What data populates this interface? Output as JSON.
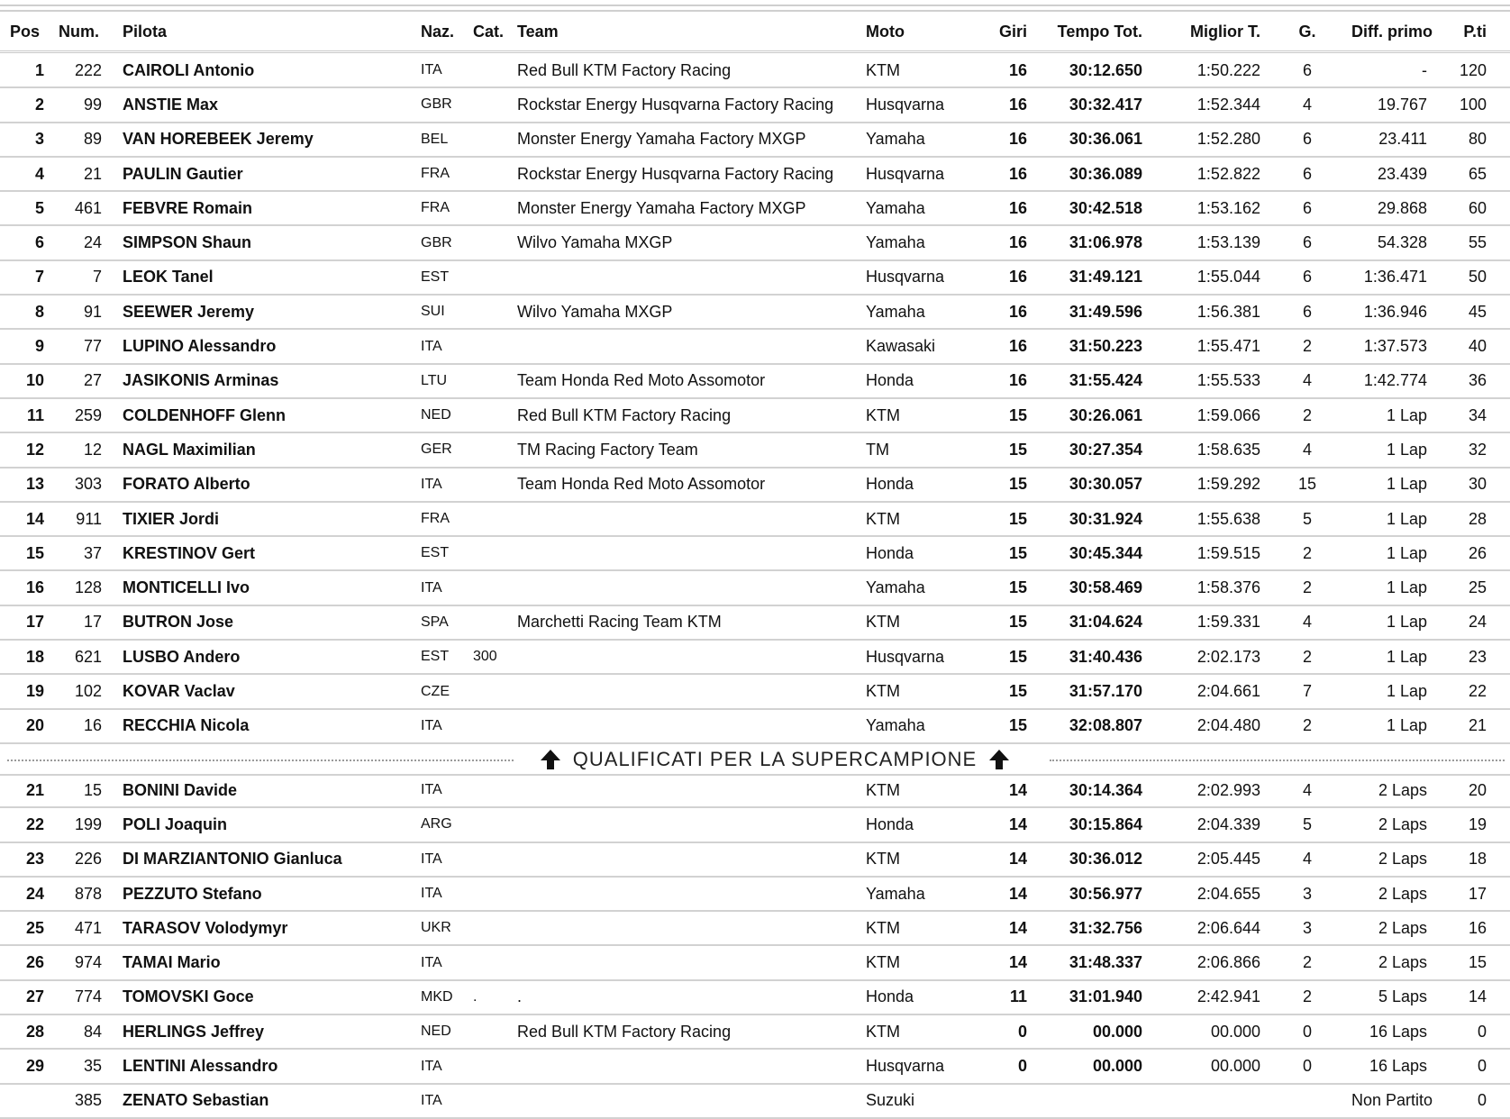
{
  "headers": {
    "pos": "Pos",
    "num": "Num.",
    "pilota": "Pilota",
    "naz": "Naz.",
    "cat": "Cat.",
    "team": "Team",
    "moto": "Moto",
    "giri": "Giri",
    "tempo": "Tempo Tot.",
    "miglior": "Miglior T.",
    "g": "G.",
    "diff": "Diff. primo",
    "pti": "P.ti"
  },
  "separator": {
    "label": "QUALIFICATI PER LA SUPERCAMPIONE",
    "icon": "arrow-up-icon"
  },
  "rows_qualified": [
    {
      "pos": "1",
      "num": "222",
      "pilota": "CAIROLI Antonio",
      "naz": "ITA",
      "cat": "",
      "team": "Red Bull KTM Factory Racing",
      "moto": "KTM",
      "giri": "16",
      "tempo": "30:12.650",
      "miglior": "1:50.222",
      "g": "6",
      "diff": "-",
      "pti": "120"
    },
    {
      "pos": "2",
      "num": "99",
      "pilota": "ANSTIE Max",
      "naz": "GBR",
      "cat": "",
      "team": "Rockstar Energy Husqvarna Factory Racing",
      "moto": "Husqvarna",
      "giri": "16",
      "tempo": "30:32.417",
      "miglior": "1:52.344",
      "g": "4",
      "diff": "19.767",
      "pti": "100"
    },
    {
      "pos": "3",
      "num": "89",
      "pilota": "VAN HOREBEEK Jeremy",
      "naz": "BEL",
      "cat": "",
      "team": "Monster Energy Yamaha Factory MXGP",
      "moto": "Yamaha",
      "giri": "16",
      "tempo": "30:36.061",
      "miglior": "1:52.280",
      "g": "6",
      "diff": "23.411",
      "pti": "80"
    },
    {
      "pos": "4",
      "num": "21",
      "pilota": "PAULIN Gautier",
      "naz": "FRA",
      "cat": "",
      "team": "Rockstar Energy Husqvarna Factory Racing",
      "moto": "Husqvarna",
      "giri": "16",
      "tempo": "30:36.089",
      "miglior": "1:52.822",
      "g": "6",
      "diff": "23.439",
      "pti": "65"
    },
    {
      "pos": "5",
      "num": "461",
      "pilota": "FEBVRE Romain",
      "naz": "FRA",
      "cat": "",
      "team": "Monster Energy Yamaha Factory MXGP",
      "moto": "Yamaha",
      "giri": "16",
      "tempo": "30:42.518",
      "miglior": "1:53.162",
      "g": "6",
      "diff": "29.868",
      "pti": "60"
    },
    {
      "pos": "6",
      "num": "24",
      "pilota": "SIMPSON Shaun",
      "naz": "GBR",
      "cat": "",
      "team": "Wilvo Yamaha MXGP",
      "moto": "Yamaha",
      "giri": "16",
      "tempo": "31:06.978",
      "miglior": "1:53.139",
      "g": "6",
      "diff": "54.328",
      "pti": "55"
    },
    {
      "pos": "7",
      "num": "7",
      "pilota": "LEOK Tanel",
      "naz": "EST",
      "cat": "",
      "team": "",
      "moto": "Husqvarna",
      "giri": "16",
      "tempo": "31:49.121",
      "miglior": "1:55.044",
      "g": "6",
      "diff": "1:36.471",
      "pti": "50"
    },
    {
      "pos": "8",
      "num": "91",
      "pilota": "SEEWER Jeremy",
      "naz": "SUI",
      "cat": "",
      "team": "Wilvo Yamaha MXGP",
      "moto": "Yamaha",
      "giri": "16",
      "tempo": "31:49.596",
      "miglior": "1:56.381",
      "g": "6",
      "diff": "1:36.946",
      "pti": "45"
    },
    {
      "pos": "9",
      "num": "77",
      "pilota": "LUPINO Alessandro",
      "naz": "ITA",
      "cat": "",
      "team": "",
      "moto": "Kawasaki",
      "giri": "16",
      "tempo": "31:50.223",
      "miglior": "1:55.471",
      "g": "2",
      "diff": "1:37.573",
      "pti": "40"
    },
    {
      "pos": "10",
      "num": "27",
      "pilota": "JASIKONIS Arminas",
      "naz": "LTU",
      "cat": "",
      "team": "Team Honda Red Moto Assomotor",
      "moto": "Honda",
      "giri": "16",
      "tempo": "31:55.424",
      "miglior": "1:55.533",
      "g": "4",
      "diff": "1:42.774",
      "pti": "36"
    },
    {
      "pos": "11",
      "num": "259",
      "pilota": "COLDENHOFF Glenn",
      "naz": "NED",
      "cat": "",
      "team": "Red Bull KTM Factory Racing",
      "moto": "KTM",
      "giri": "15",
      "tempo": "30:26.061",
      "miglior": "1:59.066",
      "g": "2",
      "diff": "1 Lap",
      "pti": "34"
    },
    {
      "pos": "12",
      "num": "12",
      "pilota": "NAGL Maximilian",
      "naz": "GER",
      "cat": "",
      "team": "TM Racing Factory Team",
      "moto": "TM",
      "giri": "15",
      "tempo": "30:27.354",
      "miglior": "1:58.635",
      "g": "4",
      "diff": "1 Lap",
      "pti": "32"
    },
    {
      "pos": "13",
      "num": "303",
      "pilota": "FORATO Alberto",
      "naz": "ITA",
      "cat": "",
      "team": "Team Honda Red Moto Assomotor",
      "moto": "Honda",
      "giri": "15",
      "tempo": "30:30.057",
      "miglior": "1:59.292",
      "g": "15",
      "diff": "1 Lap",
      "pti": "30"
    },
    {
      "pos": "14",
      "num": "911",
      "pilota": "TIXIER Jordi",
      "naz": "FRA",
      "cat": "",
      "team": "",
      "moto": "KTM",
      "giri": "15",
      "tempo": "30:31.924",
      "miglior": "1:55.638",
      "g": "5",
      "diff": "1 Lap",
      "pti": "28"
    },
    {
      "pos": "15",
      "num": "37",
      "pilota": "KRESTINOV Gert",
      "naz": "EST",
      "cat": "",
      "team": "",
      "moto": "Honda",
      "giri": "15",
      "tempo": "30:45.344",
      "miglior": "1:59.515",
      "g": "2",
      "diff": "1 Lap",
      "pti": "26"
    },
    {
      "pos": "16",
      "num": "128",
      "pilota": "MONTICELLI Ivo",
      "naz": "ITA",
      "cat": "",
      "team": "",
      "moto": "Yamaha",
      "giri": "15",
      "tempo": "30:58.469",
      "miglior": "1:58.376",
      "g": "2",
      "diff": "1 Lap",
      "pti": "25"
    },
    {
      "pos": "17",
      "num": "17",
      "pilota": "BUTRON Jose",
      "naz": "SPA",
      "cat": "",
      "team": "Marchetti Racing Team KTM",
      "moto": "KTM",
      "giri": "15",
      "tempo": "31:04.624",
      "miglior": "1:59.331",
      "g": "4",
      "diff": "1 Lap",
      "pti": "24"
    },
    {
      "pos": "18",
      "num": "621",
      "pilota": "LUSBO Andero",
      "naz": "EST",
      "cat": "300",
      "team": "",
      "moto": "Husqvarna",
      "giri": "15",
      "tempo": "31:40.436",
      "miglior": "2:02.173",
      "g": "2",
      "diff": "1 Lap",
      "pti": "23"
    },
    {
      "pos": "19",
      "num": "102",
      "pilota": "KOVAR Vaclav",
      "naz": "CZE",
      "cat": "",
      "team": "",
      "moto": "KTM",
      "giri": "15",
      "tempo": "31:57.170",
      "miglior": "2:04.661",
      "g": "7",
      "diff": "1 Lap",
      "pti": "22"
    },
    {
      "pos": "20",
      "num": "16",
      "pilota": "RECCHIA Nicola",
      "naz": "ITA",
      "cat": "",
      "team": "",
      "moto": "Yamaha",
      "giri": "15",
      "tempo": "32:08.807",
      "miglior": "2:04.480",
      "g": "2",
      "diff": "1 Lap",
      "pti": "21"
    }
  ],
  "rows_other": [
    {
      "pos": "21",
      "num": "15",
      "pilota": "BONINI Davide",
      "naz": "ITA",
      "cat": "",
      "team": "",
      "moto": "KTM",
      "giri": "14",
      "tempo": "30:14.364",
      "miglior": "2:02.993",
      "g": "4",
      "diff": "2 Laps",
      "pti": "20"
    },
    {
      "pos": "22",
      "num": "199",
      "pilota": "POLI Joaquin",
      "naz": "ARG",
      "cat": "",
      "team": "",
      "moto": "Honda",
      "giri": "14",
      "tempo": "30:15.864",
      "miglior": "2:04.339",
      "g": "5",
      "diff": "2 Laps",
      "pti": "19"
    },
    {
      "pos": "23",
      "num": "226",
      "pilota": "DI MARZIANTONIO Gianluca",
      "naz": "ITA",
      "cat": "",
      "team": "",
      "moto": "KTM",
      "giri": "14",
      "tempo": "30:36.012",
      "miglior": "2:05.445",
      "g": "4",
      "diff": "2 Laps",
      "pti": "18"
    },
    {
      "pos": "24",
      "num": "878",
      "pilota": "PEZZUTO Stefano",
      "naz": "ITA",
      "cat": "",
      "team": "",
      "moto": "Yamaha",
      "giri": "14",
      "tempo": "30:56.977",
      "miglior": "2:04.655",
      "g": "3",
      "diff": "2 Laps",
      "pti": "17"
    },
    {
      "pos": "25",
      "num": "471",
      "pilota": "TARASOV Volodymyr",
      "naz": "UKR",
      "cat": "",
      "team": "",
      "moto": "KTM",
      "giri": "14",
      "tempo": "31:32.756",
      "miglior": "2:06.644",
      "g": "3",
      "diff": "2 Laps",
      "pti": "16"
    },
    {
      "pos": "26",
      "num": "974",
      "pilota": "TAMAI Mario",
      "naz": "ITA",
      "cat": "",
      "team": "",
      "moto": "KTM",
      "giri": "14",
      "tempo": "31:48.337",
      "miglior": "2:06.866",
      "g": "2",
      "diff": "2 Laps",
      "pti": "15"
    },
    {
      "pos": "27",
      "num": "774",
      "pilota": "TOMOVSKI Goce",
      "naz": "MKD",
      "cat": ".",
      "team": ".",
      "moto": "Honda",
      "giri": "11",
      "tempo": "31:01.940",
      "miglior": "2:42.941",
      "g": "2",
      "diff": "5 Laps",
      "pti": "14"
    },
    {
      "pos": "28",
      "num": "84",
      "pilota": "HERLINGS Jeffrey",
      "naz": "NED",
      "cat": "",
      "team": "Red Bull KTM Factory Racing",
      "moto": "KTM",
      "giri": "0",
      "tempo": "00.000",
      "miglior": "00.000",
      "g": "0",
      "diff": "16 Laps",
      "pti": "0"
    },
    {
      "pos": "29",
      "num": "35",
      "pilota": "LENTINI Alessandro",
      "naz": "ITA",
      "cat": "",
      "team": "",
      "moto": "Husqvarna",
      "giri": "0",
      "tempo": "00.000",
      "miglior": "00.000",
      "g": "0",
      "diff": "16 Laps",
      "pti": "0"
    },
    {
      "pos": "",
      "num": "385",
      "pilota": "ZENATO Sebastian",
      "naz": "ITA",
      "cat": "",
      "team": "",
      "moto": "Suzuki",
      "giri": "",
      "tempo": "",
      "miglior": "",
      "g": "",
      "diff": "Non Partito",
      "pti": "0"
    }
  ]
}
